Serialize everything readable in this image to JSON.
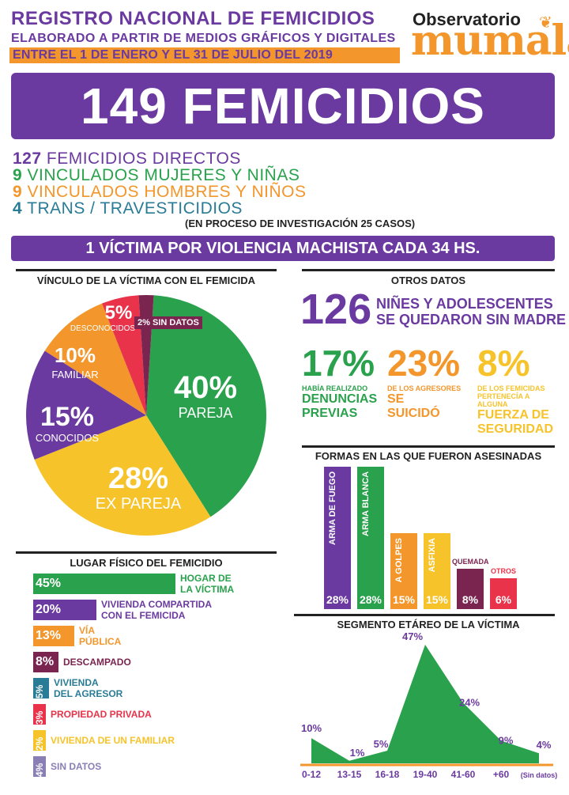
{
  "header": {
    "title": "REGISTRO NACIONAL DE FEMICIDIOS",
    "subtitle": "ELABORADO A PARTIR DE MEDIOS GRÁFICOS Y DIGITALES",
    "date_range": "ENTRE EL 1 DE ENERO Y EL 31 DE JULIO DEL 2019",
    "logo_top": "Observatorio",
    "logo_main": "mumalá"
  },
  "banner": "149 FEMICIDIOS",
  "breakdown": [
    {
      "num": "127",
      "label": "FEMICIDIOS DIRECTOS",
      "color": "#6b3aa0"
    },
    {
      "num": "9",
      "label": "VINCULADOS MUJERES Y NIÑAS",
      "color": "#2aa14c"
    },
    {
      "num": "9",
      "label": "VINCULADOS HOMBRES Y NIÑOS",
      "color": "#f3962b"
    },
    {
      "num": "4",
      "label": "TRANS / TRAVESTICIDIOS",
      "color": "#2a7c96"
    }
  ],
  "investigation": "(EN PROCESO DE INVESTIGACIÓN 25 CASOS)",
  "rate": "1 VÍCTIMA POR VIOLENCIA MACHISTA CADA 34 HS.",
  "vinculo": {
    "title": "VÍNCULO DE LA VÍCTIMA CON EL FEMICIDA",
    "pct_pareja": "40%",
    "lbl_pareja": "PAREJA",
    "pct_expareja": "28%",
    "lbl_expareja": "EX PAREJA",
    "pct_conocidos": "15%",
    "lbl_conocidos": "CONOCIDOS",
    "pct_familiar": "10%",
    "lbl_familiar": "FAMILIAR",
    "pct_desconocidos": "5%",
    "lbl_desconocidos": "DESCONOCIDOS",
    "lbl_sindatos": "2% SIN DATOS"
  },
  "otros": {
    "title": "OTROS DATOS",
    "big": "126",
    "line1": "NIÑES Y ADOLESCENTES",
    "line2": "SE QUEDARON SIN MADRE",
    "s1_pct": "17%",
    "s1_small": "HABÍA REALIZADO",
    "s1_strong1": "DENUNCIAS",
    "s1_strong2": "PREVIAS",
    "s2_pct": "23%",
    "s2_small": "DE LOS AGRESORES",
    "s2_strong1": "SE",
    "s2_strong2": "SUICIDÓ",
    "s3_pct": "8%",
    "s3_small1": "DE LOS FEMICIDAS",
    "s3_small2": "PERTENECÍA A",
    "s3_small3": "ALGUNA",
    "s3_strong1": "FUERZA DE",
    "s3_strong2": "SEGURIDAD"
  },
  "lugar": {
    "title": "LUGAR FÍSICO DEL FEMICIDIO",
    "items": [
      {
        "pct": "45%",
        "l1": "HOGAR DE",
        "l2": "LA VÍCTIMA"
      },
      {
        "pct": "20%",
        "l1": "VIVIENDA COMPARTIDA",
        "l2": "CON EL FEMICIDA"
      },
      {
        "pct": "13%",
        "l1": "VÍA",
        "l2": "PÚBLICA"
      },
      {
        "pct": "8%",
        "l1": "DESCAMPADO",
        "l2": ""
      },
      {
        "pct": "5%",
        "l1": "VIVIENDA",
        "l2": "DEL AGRESOR"
      },
      {
        "pct": "3%",
        "l1": "PROPIEDAD PRIVADA",
        "l2": ""
      },
      {
        "pct": "2%",
        "l1": "VIVIENDA DE UN FAMILIAR",
        "l2": ""
      },
      {
        "pct": "4%",
        "l1": "SIN DATOS",
        "l2": ""
      }
    ]
  },
  "formas": {
    "title": "FORMAS EN LAS QUE FUERON ASESINADAS",
    "items": [
      {
        "label": "ARMA DE FUEGO",
        "pct": "28%"
      },
      {
        "label": "ARMA BLANCA",
        "pct": "28%"
      },
      {
        "label": "A GOLPES",
        "pct": "15%"
      },
      {
        "label": "ASFIXIA",
        "pct": "15%"
      },
      {
        "label": "QUEMADA",
        "pct": "8%"
      },
      {
        "label": "OTROS",
        "pct": "6%"
      }
    ]
  },
  "edad": {
    "title": "SEGMENTO ETÁREO DE LA VÍCTIMA",
    "labels": [
      "10%",
      "1%",
      "5%",
      "47%",
      "24%",
      "9%",
      "4%"
    ],
    "ticks": [
      "0-12",
      "13-15",
      "16-18",
      "19-40",
      "41-60",
      "+60",
      "(Sin datos)"
    ]
  },
  "chart_data": [
    {
      "type": "pie",
      "title": "VÍNCULO DE LA VÍCTIMA CON EL FEMICIDA",
      "categories": [
        "PAREJA",
        "EX PAREJA",
        "CONOCIDOS",
        "FAMILIAR",
        "DESCONOCIDOS",
        "SIN DATOS"
      ],
      "values": [
        40,
        28,
        15,
        10,
        5,
        2
      ],
      "colors": [
        "#2aa14c",
        "#f6c32b",
        "#6b3aa0",
        "#f3962b",
        "#e8334a",
        "#7a2450"
      ]
    },
    {
      "type": "bar",
      "title": "LUGAR FÍSICO DEL FEMICIDIO",
      "categories": [
        "HOGAR DE LA VÍCTIMA",
        "VIVIENDA COMPARTIDA CON EL FEMICIDA",
        "VÍA PÚBLICA",
        "DESCAMPADO",
        "VIVIENDA DEL AGRESOR",
        "PROPIEDAD PRIVADA",
        "VIVIENDA DE UN FAMILIAR",
        "SIN DATOS"
      ],
      "values": [
        45,
        20,
        13,
        8,
        5,
        3,
        2,
        4
      ],
      "colors": [
        "#2aa14c",
        "#6b3aa0",
        "#f3962b",
        "#7a2450",
        "#2a7c96",
        "#e8334a",
        "#f6c32b",
        "#8a7fb5"
      ]
    },
    {
      "type": "bar",
      "title": "FORMAS EN LAS QUE FUERON ASESINADAS",
      "categories": [
        "ARMA DE FUEGO",
        "ARMA BLANCA",
        "A GOLPES",
        "ASFIXIA",
        "QUEMADA",
        "OTROS"
      ],
      "values": [
        28,
        28,
        15,
        15,
        8,
        6
      ],
      "colors": [
        "#6b3aa0",
        "#2aa14c",
        "#f3962b",
        "#f6c32b",
        "#7a2450",
        "#e8334a"
      ]
    },
    {
      "type": "area",
      "title": "SEGMENTO ETÁREO DE LA VÍCTIMA",
      "categories": [
        "0-12",
        "13-15",
        "16-18",
        "19-40",
        "41-60",
        "+60",
        "(Sin datos)"
      ],
      "values": [
        10,
        1,
        5,
        47,
        24,
        9,
        4
      ],
      "color": "#2aa14c"
    }
  ]
}
